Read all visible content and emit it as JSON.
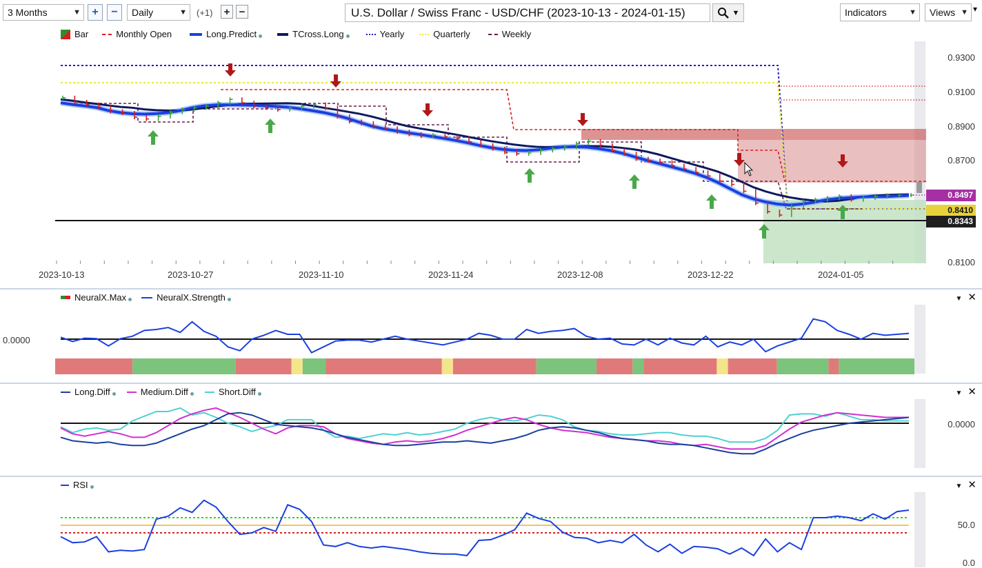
{
  "toolbar": {
    "period": "3 Months",
    "interval": "Daily",
    "shift": "(+1)",
    "title": "U.S. Dollar / Swiss Franc - USD/CHF (2023-10-13 - 2024-01-15)",
    "indicators": "Indicators",
    "views": "Views"
  },
  "price_panel": {
    "legend": [
      {
        "label": "Bar",
        "style": "bar-icon",
        "color": "#2e8b2e"
      },
      {
        "label": "Monthly Open",
        "style": "dashed",
        "color": "#d62020"
      },
      {
        "label": "Long.Predict",
        "style": "solid-thick",
        "color": "#1a3fe0"
      },
      {
        "label": "TCross.Long",
        "style": "solid-thick",
        "color": "#0d1a5e"
      },
      {
        "label": "Yearly",
        "style": "dotted",
        "color": "#1a1ad0"
      },
      {
        "label": "Quarterly",
        "style": "dotted",
        "color": "#e8e838"
      },
      {
        "label": "Weekly",
        "style": "dashed",
        "color": "#6a1b4d"
      }
    ],
    "y_ticks": [
      "0.9300",
      "0.9100",
      "0.8900",
      "0.8700",
      "0.8100"
    ],
    "x_dates": [
      "2023-10-13",
      "2023-10-27",
      "2023-11-10",
      "2023-11-24",
      "2023-12-08",
      "2023-12-22",
      "2024-01-05"
    ],
    "badges": [
      {
        "value": "0.8497",
        "bg": "#a530a5",
        "fg": "#ffffff"
      },
      {
        "value": "0.8410",
        "bg": "#e8d23a",
        "fg": "#111111"
      },
      {
        "value": "0.8343",
        "bg": "#1e1e1e",
        "fg": "#ffffff"
      }
    ]
  },
  "neural_panel": {
    "legend": [
      {
        "label": "NeuralX.Max",
        "color": "#2e8b2e"
      },
      {
        "label": "NeuralX.Strength",
        "color": "#1a3fe0"
      }
    ],
    "zero_label": "0.0000",
    "strength": [
      0.2,
      -0.25,
      0.1,
      0.05,
      -0.7,
      0.05,
      0.3,
      0.9,
      1.0,
      1.2,
      0.7,
      1.8,
      0.8,
      0.3,
      -0.8,
      -1.2,
      0.0,
      0.4,
      0.9,
      0.5,
      0.5,
      -1.4,
      -0.8,
      -0.2,
      -0.1,
      -0.1,
      -0.3,
      0.0,
      0.3,
      0.0,
      -0.2,
      -0.4,
      -0.6,
      -0.3,
      0.0,
      0.6,
      0.4,
      0.0,
      0.0,
      1.0,
      0.6,
      0.8,
      0.9,
      1.1,
      0.3,
      0.0,
      0.1,
      -0.5,
      -0.6,
      0.0,
      -0.6,
      0.1,
      -0.4,
      -0.6,
      0.3,
      -0.8,
      -0.3,
      -0.6,
      0.0,
      -1.3,
      -0.7,
      -0.3,
      0.1,
      2.1,
      1.8,
      0.9,
      0.5,
      0.0,
      0.6,
      0.4,
      0.5,
      0.6
    ],
    "bands": [
      {
        "from": 0,
        "to": 0.09,
        "color": "#e07a7a"
      },
      {
        "from": 0.09,
        "to": 0.21,
        "color": "#7cc47c"
      },
      {
        "from": 0.21,
        "to": 0.275,
        "color": "#e07a7a"
      },
      {
        "from": 0.275,
        "to": 0.288,
        "color": "#f4e58a"
      },
      {
        "from": 0.288,
        "to": 0.315,
        "color": "#7cc47c"
      },
      {
        "from": 0.315,
        "to": 0.45,
        "color": "#e07a7a"
      },
      {
        "from": 0.45,
        "to": 0.463,
        "color": "#f4e58a"
      },
      {
        "from": 0.463,
        "to": 0.56,
        "color": "#e07a7a"
      },
      {
        "from": 0.56,
        "to": 0.63,
        "color": "#7cc47c"
      },
      {
        "from": 0.63,
        "to": 0.672,
        "color": "#e07a7a"
      },
      {
        "from": 0.672,
        "to": 0.685,
        "color": "#7cc47c"
      },
      {
        "from": 0.685,
        "to": 0.77,
        "color": "#e07a7a"
      },
      {
        "from": 0.77,
        "to": 0.783,
        "color": "#f4e58a"
      },
      {
        "from": 0.783,
        "to": 0.84,
        "color": "#e07a7a"
      },
      {
        "from": 0.84,
        "to": 0.9,
        "color": "#7cc47c"
      },
      {
        "from": 0.9,
        "to": 0.912,
        "color": "#e07a7a"
      },
      {
        "from": 0.912,
        "to": 1.0,
        "color": "#7cc47c"
      }
    ]
  },
  "diff_panel": {
    "legend": [
      {
        "label": "Long.Diff",
        "color": "#1a3f9e"
      },
      {
        "label": "Medium.Diff",
        "color": "#d02fd0"
      },
      {
        "label": "Short.Diff",
        "color": "#4fd0d0"
      }
    ],
    "zero_label": "0.0000"
  },
  "rsi_panel": {
    "legend": [
      {
        "label": "RSI",
        "color": "#1a3fe0"
      }
    ],
    "y_ticks": [
      "50.0",
      "0.0"
    ]
  }
}
